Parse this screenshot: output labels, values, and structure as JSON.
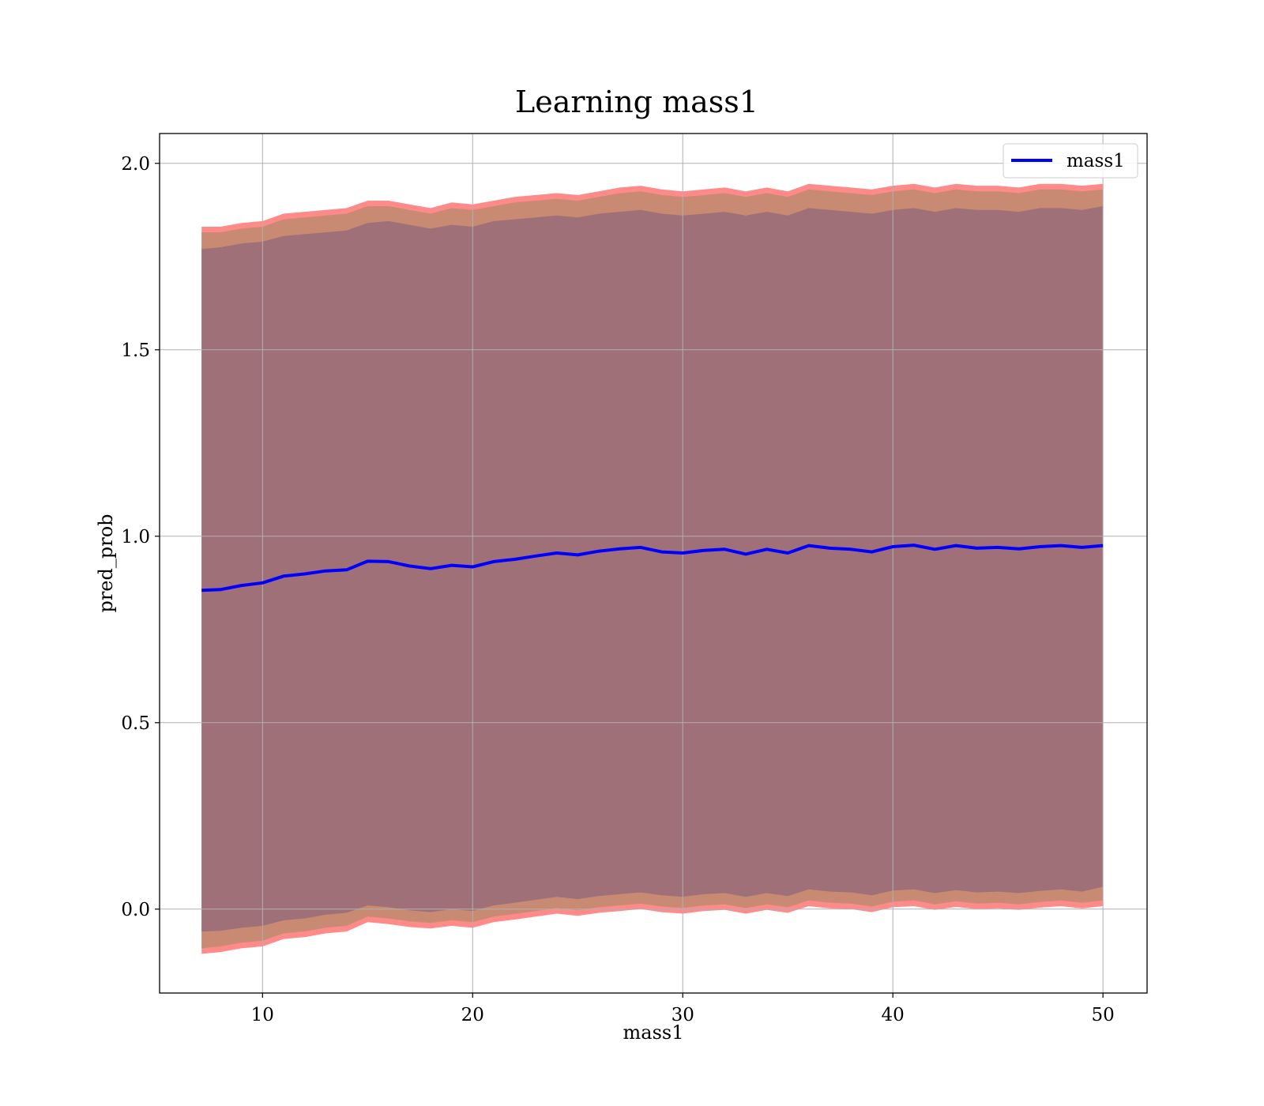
{
  "chart_data": {
    "type": "line",
    "title": "Learning mass1",
    "xlabel": "mass1",
    "ylabel": "pred_prob",
    "xlim": [
      5.1,
      52.1
    ],
    "ylim": [
      -0.225,
      2.08
    ],
    "xticks": [
      10,
      20,
      30,
      40,
      50
    ],
    "xtick_labels": [
      "10",
      "20",
      "30",
      "40",
      "50"
    ],
    "yticks": [
      0.0,
      0.5,
      1.0,
      1.5,
      2.0
    ],
    "ytick_labels": [
      "0.0",
      "0.5",
      "1.0",
      "1.5",
      "2.0"
    ],
    "grid": true,
    "legend": {
      "position": "top-right",
      "entries": [
        "mass1"
      ]
    },
    "colors": {
      "line": "#0000ff",
      "outer_band": "#ff8a8a",
      "middle_band": "#c88a73",
      "inner_band": "#a07078",
      "grid": "#b0b0b0"
    },
    "series": [
      {
        "name": "mass1",
        "x": [
          7.1,
          8,
          9,
          10,
          11,
          12,
          13,
          14,
          15,
          16,
          17,
          18,
          19,
          20,
          21,
          22,
          23,
          24,
          25,
          26,
          27,
          28,
          29,
          30,
          31,
          32,
          33,
          34,
          35,
          36,
          37,
          38,
          39,
          40,
          41,
          42,
          43,
          44,
          45,
          46,
          47,
          48,
          49,
          50
        ],
        "y": [
          0.855,
          0.857,
          0.868,
          0.875,
          0.893,
          0.899,
          0.907,
          0.91,
          0.933,
          0.932,
          0.92,
          0.913,
          0.922,
          0.918,
          0.932,
          0.938,
          0.947,
          0.955,
          0.95,
          0.96,
          0.966,
          0.97,
          0.958,
          0.955,
          0.962,
          0.965,
          0.952,
          0.965,
          0.955,
          0.975,
          0.968,
          0.965,
          0.958,
          0.972,
          0.976,
          0.965,
          0.975,
          0.968,
          0.97,
          0.966,
          0.972,
          0.975,
          0.97,
          0.975
        ]
      }
    ],
    "bands": [
      {
        "x": [
          7.1,
          8,
          9,
          10,
          11,
          12,
          13,
          14,
          15,
          16,
          17,
          18,
          19,
          20,
          21,
          22,
          23,
          24,
          25,
          26,
          27,
          28,
          29,
          30,
          31,
          32,
          33,
          34,
          35,
          36,
          37,
          38,
          39,
          40,
          41,
          42,
          43,
          44,
          45,
          46,
          47,
          48,
          49,
          50
        ],
        "lower": [
          -0.12,
          -0.115,
          -0.105,
          -0.1,
          -0.08,
          -0.075,
          -0.065,
          -0.06,
          -0.035,
          -0.04,
          -0.048,
          -0.052,
          -0.045,
          -0.05,
          -0.035,
          -0.028,
          -0.02,
          -0.012,
          -0.018,
          -0.01,
          -0.005,
          0.0,
          -0.008,
          -0.012,
          -0.005,
          -0.002,
          -0.012,
          -0.002,
          -0.01,
          0.008,
          0.002,
          0.0,
          -0.008,
          0.005,
          0.008,
          -0.002,
          0.006,
          0.0,
          0.002,
          -0.002,
          0.004,
          0.008,
          0.002,
          0.008
        ],
        "upper": [
          1.83,
          1.83,
          1.84,
          1.845,
          1.865,
          1.87,
          1.875,
          1.88,
          1.9,
          1.9,
          1.89,
          1.88,
          1.895,
          1.89,
          1.9,
          1.91,
          1.915,
          1.92,
          1.915,
          1.925,
          1.935,
          1.94,
          1.93,
          1.925,
          1.93,
          1.935,
          1.925,
          1.935,
          1.925,
          1.945,
          1.94,
          1.935,
          1.93,
          1.94,
          1.945,
          1.935,
          1.945,
          1.94,
          1.94,
          1.935,
          1.945,
          1.945,
          1.94,
          1.945
        ]
      },
      {
        "x": [
          7.1,
          8,
          9,
          10,
          11,
          12,
          13,
          14,
          15,
          16,
          17,
          18,
          19,
          20,
          21,
          22,
          23,
          24,
          25,
          26,
          27,
          28,
          29,
          30,
          31,
          32,
          33,
          34,
          35,
          36,
          37,
          38,
          39,
          40,
          41,
          42,
          43,
          44,
          45,
          46,
          47,
          48,
          49,
          50
        ],
        "lower": [
          -0.105,
          -0.1,
          -0.09,
          -0.085,
          -0.065,
          -0.06,
          -0.05,
          -0.045,
          -0.02,
          -0.025,
          -0.033,
          -0.037,
          -0.03,
          -0.035,
          -0.02,
          -0.013,
          -0.005,
          0.003,
          -0.003,
          0.005,
          0.01,
          0.015,
          0.007,
          0.003,
          0.01,
          0.013,
          0.003,
          0.013,
          0.005,
          0.023,
          0.017,
          0.015,
          0.007,
          0.02,
          0.023,
          0.013,
          0.021,
          0.015,
          0.017,
          0.013,
          0.019,
          0.023,
          0.017,
          0.023
        ],
        "upper": [
          1.815,
          1.815,
          1.825,
          1.83,
          1.85,
          1.855,
          1.86,
          1.865,
          1.885,
          1.885,
          1.875,
          1.865,
          1.88,
          1.875,
          1.885,
          1.895,
          1.9,
          1.905,
          1.9,
          1.91,
          1.92,
          1.925,
          1.915,
          1.91,
          1.915,
          1.92,
          1.91,
          1.92,
          1.91,
          1.93,
          1.925,
          1.92,
          1.915,
          1.925,
          1.93,
          1.92,
          1.93,
          1.925,
          1.925,
          1.92,
          1.93,
          1.93,
          1.925,
          1.93
        ]
      },
      {
        "x": [
          7.1,
          8,
          9,
          10,
          11,
          12,
          13,
          14,
          15,
          16,
          17,
          18,
          19,
          20,
          21,
          22,
          23,
          24,
          25,
          26,
          27,
          28,
          29,
          30,
          31,
          32,
          33,
          34,
          35,
          36,
          37,
          38,
          39,
          40,
          41,
          42,
          43,
          44,
          45,
          46,
          47,
          48,
          49,
          50
        ],
        "lower": [
          -0.06,
          -0.058,
          -0.05,
          -0.045,
          -0.03,
          -0.025,
          -0.015,
          -0.01,
          0.01,
          0.005,
          -0.003,
          -0.008,
          0.0,
          -0.005,
          0.01,
          0.017,
          0.025,
          0.033,
          0.027,
          0.035,
          0.04,
          0.045,
          0.037,
          0.033,
          0.04,
          0.043,
          0.033,
          0.043,
          0.035,
          0.053,
          0.047,
          0.045,
          0.037,
          0.05,
          0.053,
          0.043,
          0.051,
          0.045,
          0.047,
          0.043,
          0.049,
          0.053,
          0.047,
          0.06
        ],
        "upper": [
          1.77,
          1.775,
          1.785,
          1.79,
          1.805,
          1.81,
          1.815,
          1.82,
          1.84,
          1.845,
          1.835,
          1.825,
          1.835,
          1.83,
          1.845,
          1.85,
          1.855,
          1.86,
          1.855,
          1.865,
          1.87,
          1.875,
          1.865,
          1.86,
          1.865,
          1.87,
          1.86,
          1.87,
          1.86,
          1.88,
          1.875,
          1.87,
          1.865,
          1.875,
          1.88,
          1.87,
          1.88,
          1.875,
          1.875,
          1.87,
          1.88,
          1.88,
          1.875,
          1.885
        ]
      }
    ]
  }
}
